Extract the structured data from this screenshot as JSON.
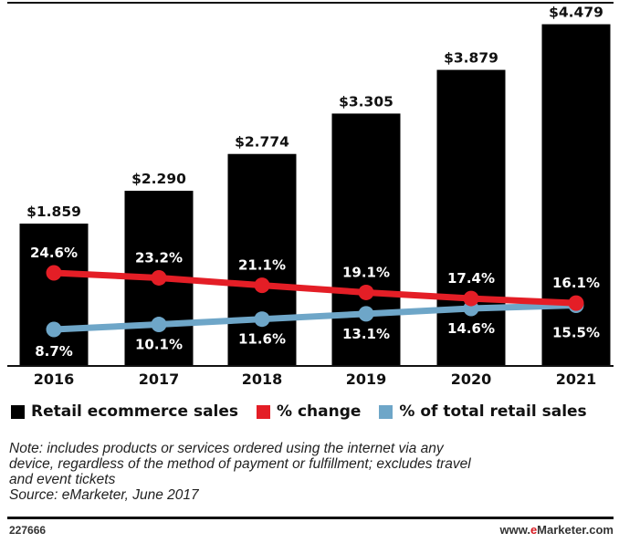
{
  "chart_data": {
    "type": "bar",
    "categories": [
      "2016",
      "2017",
      "2018",
      "2019",
      "2020",
      "2021"
    ],
    "series": [
      {
        "name": "Retail ecommerce sales",
        "type": "bar",
        "color": "#000000",
        "values": [
          1.859,
          2.29,
          2.774,
          3.305,
          3.879,
          4.479
        ],
        "labels": [
          "$1.859",
          "$2.290",
          "$2.774",
          "$3.305",
          "$3.879",
          "$4.479"
        ]
      },
      {
        "name": "% change",
        "type": "line",
        "color": "#e41e26",
        "values": [
          24.6,
          23.2,
          21.1,
          19.1,
          17.4,
          16.1
        ],
        "labels": [
          "24.6%",
          "23.2%",
          "21.1%",
          "19.1%",
          "17.4%",
          "16.1%"
        ]
      },
      {
        "name": "% of total retail sales",
        "type": "line",
        "color": "#6ea6c8",
        "values": [
          8.7,
          10.1,
          11.6,
          13.1,
          14.6,
          15.5
        ],
        "labels": [
          "8.7%",
          "10.1%",
          "11.6%",
          "13.1%",
          "14.6%",
          "15.5%"
        ]
      }
    ],
    "legend_position": "bottom",
    "grid": false
  },
  "legend": [
    {
      "label": "Retail ecommerce sales",
      "color": "#000000"
    },
    {
      "label": "% change",
      "color": "#e41e26"
    },
    {
      "label": "% of total retail sales",
      "color": "#6ea6c8"
    }
  ],
  "note": {
    "lines": [
      "Note: includes products or services ordered using the internet via any",
      "device, regardless of the method of payment or fulfillment; excludes travel",
      "and event tickets"
    ],
    "source": "Source: eMarketer, June 2017"
  },
  "footer": {
    "chart_id": "227666",
    "site_prefix": "www.",
    "site_brand": "e",
    "site_rest": "Marketer.com"
  }
}
